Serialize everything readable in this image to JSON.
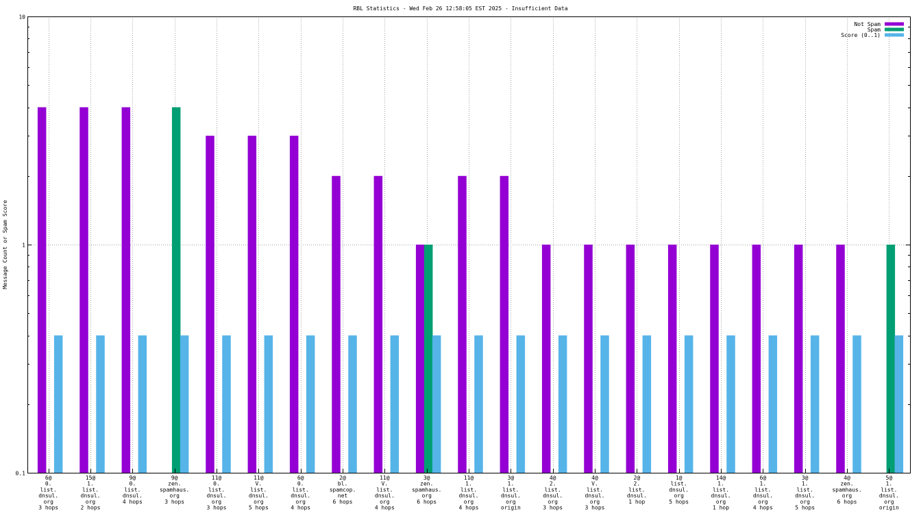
{
  "chart_data": {
    "type": "bar",
    "title": "RBL Statistics - Wed Feb 26 12:58:05 EST 2025 - Insufficient Data",
    "ylabel": "Message Count or Spam Score",
    "xlabel": "",
    "yscale": "log",
    "ylim": [
      0.1,
      10
    ],
    "yticks": [
      {
        "value": 0.1,
        "label": "0.1"
      },
      {
        "value": 1,
        "label": "1"
      },
      {
        "value": 10,
        "label": "10"
      }
    ],
    "grid": true,
    "legend_position": "top-right",
    "categories": [
      [
        "6@",
        "0.",
        "list.",
        "dnsul.",
        "org",
        "3 hops"
      ],
      [
        "15@",
        "1.",
        "list.",
        "dnsul.",
        "org",
        "2 hops"
      ],
      [
        "9@",
        "0.",
        "list.",
        "dnsul.",
        "4 hops"
      ],
      [
        "9@",
        "zen.",
        "spamhaus.",
        "org",
        "3 hops"
      ],
      [
        "11@",
        "0.",
        "list.",
        "dnsul.",
        "org",
        "3 hops"
      ],
      [
        "11@",
        "V.",
        "list.",
        "dnsul.",
        "org",
        "5 hops"
      ],
      [
        "6@",
        "0.",
        "list.",
        "dnsul.",
        "org",
        "4 hops"
      ],
      [
        "2@",
        "bl.",
        "spamcop.",
        "net",
        "6 hops"
      ],
      [
        "11@",
        "V.",
        "list.",
        "dnsul.",
        "org",
        "4 hops"
      ],
      [
        "3@",
        "zen.",
        "spamhaus.",
        "org",
        "6 hops"
      ],
      [
        "11@",
        "1.",
        "list.",
        "dnsul.",
        "org",
        "4 hops"
      ],
      [
        "3@",
        "1.",
        "list.",
        "dnsul.",
        "org",
        "origin"
      ],
      [
        "4@",
        "2.",
        "list.",
        "dnsul.",
        "org",
        "3 hops"
      ],
      [
        "4@",
        "V.",
        "list.",
        "dnsul.",
        "org",
        "3 hops"
      ],
      [
        "2@",
        "2.",
        "list.",
        "dnsul.",
        "1 hop"
      ],
      [
        "1@",
        "list.",
        "dnsul.",
        "org",
        "5 hops"
      ],
      [
        "14@",
        "1.",
        "list.",
        "dnsul.",
        "org",
        "1 hop"
      ],
      [
        "6@",
        "1.",
        "list.",
        "dnsul.",
        "org",
        "4 hops"
      ],
      [
        "3@",
        "1.",
        "list.",
        "dnsul.",
        "org",
        "5 hops"
      ],
      [
        "4@",
        "zen.",
        "spamhaus.",
        "org",
        "6 hops"
      ],
      [
        "5@",
        "1.",
        "list.",
        "dnsul.",
        "org",
        "origin"
      ]
    ],
    "series": [
      {
        "name": "Not Spam",
        "color": "#9400d3",
        "values": [
          4,
          4,
          4,
          null,
          3,
          3,
          3,
          2,
          2,
          1,
          2,
          2,
          1,
          1,
          1,
          1,
          1,
          1,
          1,
          1,
          null
        ]
      },
      {
        "name": "Spam",
        "color": "#009e73",
        "values": [
          null,
          null,
          null,
          4,
          null,
          null,
          null,
          null,
          null,
          1,
          null,
          null,
          null,
          null,
          null,
          null,
          null,
          null,
          null,
          null,
          1
        ]
      },
      {
        "name": "Score (0..1)",
        "color": "#56b4e9",
        "values": [
          0.4,
          0.4,
          0.4,
          0.4,
          0.4,
          0.4,
          0.4,
          0.4,
          0.4,
          0.4,
          0.4,
          0.4,
          0.4,
          0.4,
          0.4,
          0.4,
          0.4,
          0.4,
          0.4,
          0.4,
          0.4
        ]
      }
    ]
  }
}
